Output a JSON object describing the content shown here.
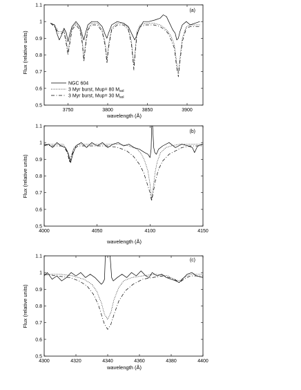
{
  "figure": {
    "ylabel": "Flux (relative units)",
    "xlabel": "wavelength (Å)"
  },
  "legend": {
    "items": [
      {
        "label": "NGC 604",
        "style": "solid"
      },
      {
        "label": "3 Myr burst, Mup= 80 Msol",
        "text": "3 Myr burst, Mup= 80 M",
        "sub": "sol",
        "style": "dotted"
      },
      {
        "label": "3 Myr burst, Mup= 30 Msol",
        "text": "3 Myr burst, Mup= 30 M",
        "sub": "sol",
        "style": "dashed"
      }
    ]
  },
  "styles": {
    "solid": "",
    "dotted": "1,1.4",
    "dashed": "5,2.5,1,2.5"
  },
  "chart_data": [
    {
      "type": "line",
      "panel_label": "(a)",
      "xlabel": "wavelength (Å)",
      "ylabel": "Flux (relative units)",
      "xlim": [
        3720,
        3920
      ],
      "ylim": [
        0.5,
        1.1
      ],
      "xticks": [
        3750,
        3800,
        3850,
        3900
      ],
      "yticks": [
        0.5,
        0.6,
        0.7,
        0.8,
        0.9,
        1,
        1.1
      ],
      "yticklabels": [
        "0.5",
        "0.6",
        "0.7",
        "0.8",
        "0.9",
        "1",
        "1.1"
      ],
      "legend": "lower-left",
      "series": [
        {
          "name": "NGC 604",
          "style": "solid",
          "x": [
            3728,
            3733,
            3736,
            3739,
            3742,
            3745,
            3748,
            3750,
            3752,
            3755,
            3760,
            3765,
            3768,
            3770,
            3772,
            3775,
            3780,
            3787,
            3793,
            3797,
            3799,
            3801,
            3805,
            3812,
            3820,
            3826,
            3832,
            3834,
            3836,
            3840,
            3845,
            3852,
            3860,
            3866,
            3870,
            3874,
            3878,
            3882,
            3885,
            3887,
            3889,
            3891,
            3894,
            3899,
            3904,
            3910,
            3916
          ],
          "y": [
            0.99,
            0.98,
            0.93,
            0.89,
            0.92,
            0.96,
            0.93,
            0.88,
            0.92,
            0.97,
            1.0,
            0.97,
            0.92,
            0.89,
            0.93,
            0.98,
            1.0,
            1.0,
            0.97,
            0.92,
            0.9,
            0.93,
            0.98,
            1.0,
            0.99,
            0.97,
            0.91,
            0.89,
            0.91,
            0.96,
            1.0,
            1.0,
            1.01,
            1.02,
            1.04,
            1.03,
            0.99,
            0.95,
            0.93,
            0.89,
            0.9,
            0.94,
            0.98,
            1.0,
            0.98,
            0.99,
            1.0
          ]
        },
        {
          "name": "3 Myr burst, Mup= 80 Msol",
          "style": "dotted",
          "x": [
            3728,
            3733,
            3738,
            3742,
            3745,
            3748,
            3750,
            3752,
            3755,
            3760,
            3765,
            3768,
            3770,
            3772,
            3775,
            3780,
            3787,
            3793,
            3797,
            3799,
            3801,
            3805,
            3812,
            3820,
            3826,
            3830,
            3833,
            3835,
            3837,
            3841,
            3848,
            3858,
            3866,
            3872,
            3876,
            3880,
            3884,
            3887,
            3889,
            3891,
            3894,
            3899,
            3904,
            3910,
            3916
          ],
          "y": [
            0.99,
            0.98,
            0.94,
            0.94,
            0.95,
            0.88,
            0.82,
            0.88,
            0.96,
            0.99,
            0.96,
            0.89,
            0.78,
            0.87,
            0.96,
            0.99,
            0.99,
            0.95,
            0.87,
            0.77,
            0.86,
            0.96,
            0.99,
            0.99,
            0.96,
            0.88,
            0.74,
            0.85,
            0.94,
            0.98,
            0.99,
            0.99,
            0.98,
            0.96,
            0.94,
            0.91,
            0.86,
            0.75,
            0.69,
            0.78,
            0.9,
            0.97,
            0.98,
            0.98,
            0.98
          ]
        },
        {
          "name": "3 Myr burst, Mup= 30 Msol",
          "style": "dashed",
          "x": [
            3728,
            3733,
            3738,
            3742,
            3745,
            3748,
            3750,
            3752,
            3755,
            3760,
            3765,
            3768,
            3770,
            3772,
            3775,
            3780,
            3787,
            3793,
            3797,
            3799,
            3801,
            3805,
            3812,
            3820,
            3826,
            3830,
            3833,
            3835,
            3837,
            3841,
            3848,
            3858,
            3866,
            3872,
            3876,
            3880,
            3884,
            3887,
            3889,
            3891,
            3894,
            3899,
            3904,
            3910,
            3916
          ],
          "y": [
            0.99,
            0.97,
            0.93,
            0.93,
            0.94,
            0.86,
            0.8,
            0.86,
            0.95,
            0.98,
            0.95,
            0.87,
            0.76,
            0.85,
            0.95,
            0.98,
            0.98,
            0.94,
            0.85,
            0.75,
            0.84,
            0.95,
            0.98,
            0.98,
            0.95,
            0.86,
            0.71,
            0.83,
            0.93,
            0.97,
            0.98,
            0.98,
            0.97,
            0.95,
            0.93,
            0.89,
            0.84,
            0.72,
            0.67,
            0.76,
            0.88,
            0.96,
            0.97,
            0.97,
            0.97
          ]
        }
      ]
    },
    {
      "type": "line",
      "panel_label": "(b)",
      "xlabel": "wavelength (Å)",
      "ylabel": "Flux (relative units)",
      "xlim": [
        4000,
        4150
      ],
      "ylim": [
        0.5,
        1.1
      ],
      "xticks": [
        4000,
        4050,
        4100,
        4150
      ],
      "yticks": [
        0.5,
        0.6,
        0.7,
        0.8,
        0.9,
        1,
        1.1
      ],
      "yticklabels": [
        "0.5",
        "0.6",
        "0.7",
        "0.8",
        "0.9",
        "1",
        "1.1"
      ],
      "series": [
        {
          "name": "NGC 604",
          "style": "solid",
          "x": [
            4000,
            4004,
            4008,
            4012,
            4016,
            4020,
            4023,
            4025,
            4027,
            4030,
            4035,
            4040,
            4045,
            4050,
            4055,
            4060,
            4065,
            4070,
            4075,
            4080,
            4085,
            4090,
            4095,
            4098,
            4100,
            4101,
            4101.6,
            4102.4,
            4103.5,
            4104.5,
            4106,
            4108,
            4112,
            4118,
            4124,
            4130,
            4136,
            4140,
            4142,
            4145,
            4150
          ],
          "y": [
            0.98,
            0.99,
            0.97,
            1.0,
            0.98,
            0.97,
            0.93,
            0.88,
            0.93,
            0.98,
            1.0,
            0.97,
            1.0,
            0.98,
            1.0,
            0.97,
            0.99,
            1.0,
            0.98,
            0.99,
            0.97,
            0.96,
            0.94,
            0.93,
            0.91,
            0.96,
            1.1,
            1.1,
            0.97,
            0.94,
            0.93,
            0.96,
            0.98,
            1.0,
            0.97,
            0.99,
            0.98,
            0.97,
            0.94,
            0.98,
            0.99
          ]
        },
        {
          "name": "3 Myr burst, Mup= 80 Msol",
          "style": "dotted",
          "x": [
            4000,
            4006,
            4012,
            4018,
            4022,
            4024,
            4026,
            4028,
            4032,
            4040,
            4050,
            4060,
            4070,
            4080,
            4088,
            4092,
            4095,
            4098,
            4100,
            4101.5,
            4103,
            4105,
            4107,
            4110,
            4115,
            4120,
            4128,
            4136,
            4145,
            4150
          ],
          "y": [
            0.99,
            0.99,
            0.99,
            0.99,
            0.95,
            0.89,
            0.93,
            0.97,
            0.99,
            0.99,
            0.99,
            0.99,
            0.99,
            0.98,
            0.96,
            0.93,
            0.89,
            0.83,
            0.75,
            0.66,
            0.73,
            0.83,
            0.89,
            0.94,
            0.97,
            0.98,
            0.99,
            0.99,
            0.99,
            0.99
          ]
        },
        {
          "name": "3 Myr burst, Mup= 30 Msol",
          "style": "dashed",
          "x": [
            4000,
            4006,
            4012,
            4018,
            4022,
            4024,
            4026,
            4028,
            4032,
            4040,
            4050,
            4060,
            4070,
            4078,
            4084,
            4090,
            4094,
            4097,
            4100,
            4101.5,
            4103,
            4105,
            4108,
            4112,
            4118,
            4124,
            4130,
            4138,
            4145,
            4150
          ],
          "y": [
            0.99,
            0.98,
            0.98,
            0.98,
            0.94,
            0.88,
            0.92,
            0.96,
            0.98,
            0.98,
            0.98,
            0.98,
            0.97,
            0.95,
            0.92,
            0.87,
            0.82,
            0.76,
            0.7,
            0.65,
            0.7,
            0.77,
            0.84,
            0.89,
            0.93,
            0.95,
            0.97,
            0.98,
            0.98,
            0.98
          ]
        }
      ]
    },
    {
      "type": "line",
      "panel_label": "(c)",
      "xlabel": "wavelength (Å)",
      "ylabel": "Flux (relative units)",
      "xlim": [
        4300,
        4400
      ],
      "ylim": [
        0.5,
        1.1
      ],
      "xticks": [
        4300,
        4320,
        4340,
        4360,
        4380,
        4400
      ],
      "yticks": [
        0.5,
        0.6,
        0.7,
        0.8,
        0.9,
        1,
        1.1
      ],
      "yticklabels": [
        "0.5",
        "0.6",
        "0.7",
        "0.8",
        "0.9",
        "1",
        "1.1"
      ],
      "series": [
        {
          "name": "NGC 604",
          "style": "solid",
          "x": [
            4300,
            4302,
            4305,
            4308,
            4311,
            4314,
            4317,
            4320,
            4323,
            4326,
            4329,
            4332,
            4334,
            4336,
            4337,
            4338,
            4338.5,
            4341.5,
            4342.5,
            4343.5,
            4346,
            4349,
            4352,
            4355,
            4358,
            4361,
            4364,
            4366,
            4368,
            4371,
            4374,
            4377,
            4380,
            4383,
            4385,
            4387,
            4390,
            4393,
            4396,
            4400
          ],
          "y": [
            0.98,
            1.0,
            0.96,
            0.98,
            0.95,
            0.97,
            1.0,
            0.98,
            1.0,
            0.97,
            0.99,
            0.97,
            0.95,
            0.93,
            0.94,
            0.96,
            1.1,
            1.1,
            0.97,
            0.95,
            0.97,
            0.99,
            0.97,
            1.0,
            0.98,
            1.01,
            0.98,
            0.97,
            1.0,
            0.98,
            0.99,
            0.97,
            0.96,
            0.95,
            0.94,
            0.96,
            0.99,
            1.0,
            0.98,
            0.97
          ]
        },
        {
          "name": "3 Myr burst, Mup= 80 Msol",
          "style": "dotted",
          "x": [
            4300,
            4310,
            4318,
            4325,
            4330,
            4333,
            4336,
            4338,
            4340,
            4342,
            4344,
            4347,
            4350,
            4355,
            4362,
            4370,
            4378,
            4382,
            4385,
            4388,
            4392,
            4400
          ],
          "y": [
            0.99,
            0.99,
            0.98,
            0.96,
            0.93,
            0.89,
            0.82,
            0.75,
            0.72,
            0.76,
            0.84,
            0.91,
            0.95,
            0.97,
            0.98,
            0.99,
            0.98,
            0.96,
            0.95,
            0.97,
            0.99,
            0.99
          ]
        },
        {
          "name": "3 Myr burst, Mup= 30 Msol",
          "style": "dashed",
          "x": [
            4300,
            4308,
            4316,
            4322,
            4327,
            4331,
            4334,
            4336,
            4338,
            4340,
            4342,
            4344,
            4347,
            4351,
            4356,
            4362,
            4368,
            4375,
            4382,
            4385,
            4388,
            4392,
            4400
          ],
          "y": [
            0.99,
            0.98,
            0.97,
            0.95,
            0.92,
            0.87,
            0.81,
            0.75,
            0.69,
            0.66,
            0.69,
            0.75,
            0.83,
            0.89,
            0.93,
            0.96,
            0.97,
            0.98,
            0.96,
            0.94,
            0.96,
            0.98,
            0.98
          ]
        }
      ]
    }
  ]
}
